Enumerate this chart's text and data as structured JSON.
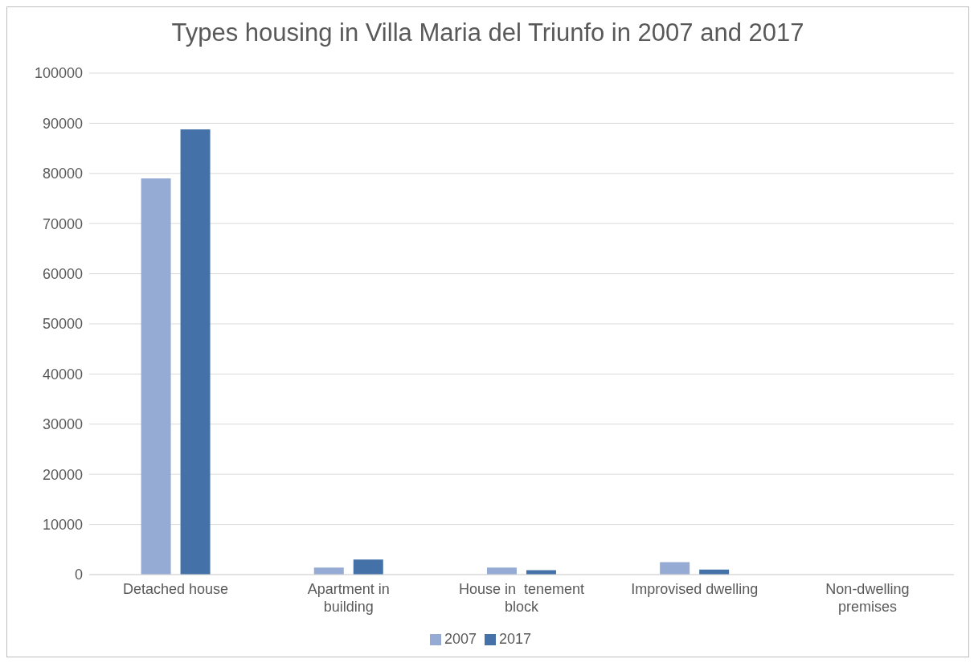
{
  "chart_data": {
    "type": "bar",
    "title": "Types housing in Villa Maria del Triunfo in 2007 and 2017",
    "categories": [
      "Detached house",
      "Apartment in building",
      "House in  tenement block",
      "Improvised dwelling",
      "Non-dwelling premises"
    ],
    "series": [
      {
        "name": "2007",
        "color": "#95abd3",
        "values": [
          79000,
          1400,
          1400,
          2500,
          0
        ]
      },
      {
        "name": "2017",
        "color": "#4472a8",
        "values": [
          88800,
          3000,
          900,
          1000,
          0
        ]
      }
    ],
    "ylim": [
      0,
      100000
    ],
    "yticks": [
      0,
      10000,
      20000,
      30000,
      40000,
      50000,
      60000,
      70000,
      80000,
      90000,
      100000
    ],
    "grid": "y",
    "legend": "bottom"
  }
}
